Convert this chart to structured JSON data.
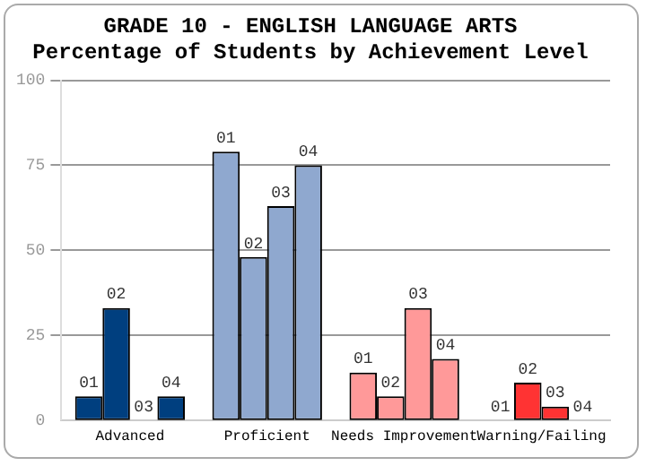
{
  "chart_data": {
    "type": "bar",
    "title": "GRADE 10 - ENGLISH LANGUAGE ARTS",
    "subtitle": "Percentage of Students by Achievement Level",
    "categories": [
      "Advanced",
      "Proficient",
      "Needs Improvement",
      "Warning/Failing"
    ],
    "series": [
      {
        "name": "01",
        "colors": [
          "#003f7f",
          "#8fa8cf",
          "#ff9999",
          "#ff3333"
        ],
        "values": [
          7,
          79,
          14,
          0
        ]
      },
      {
        "name": "02",
        "colors": [
          "#003f7f",
          "#8fa8cf",
          "#ff9999",
          "#ff3333"
        ],
        "values": [
          33,
          48,
          7,
          11
        ]
      },
      {
        "name": "03",
        "colors": [
          "#003f7f",
          "#8fa8cf",
          "#ff9999",
          "#ff3333"
        ],
        "values": [
          0,
          63,
          33,
          4
        ]
      },
      {
        "name": "04",
        "colors": [
          "#003f7f",
          "#8fa8cf",
          "#ff9999",
          "#ff3333"
        ],
        "values": [
          7,
          75,
          18,
          0
        ]
      }
    ],
    "ylim": [
      0,
      100
    ],
    "yticks": [
      0,
      25,
      50,
      75,
      100
    ],
    "grid": "y",
    "legend": false
  }
}
